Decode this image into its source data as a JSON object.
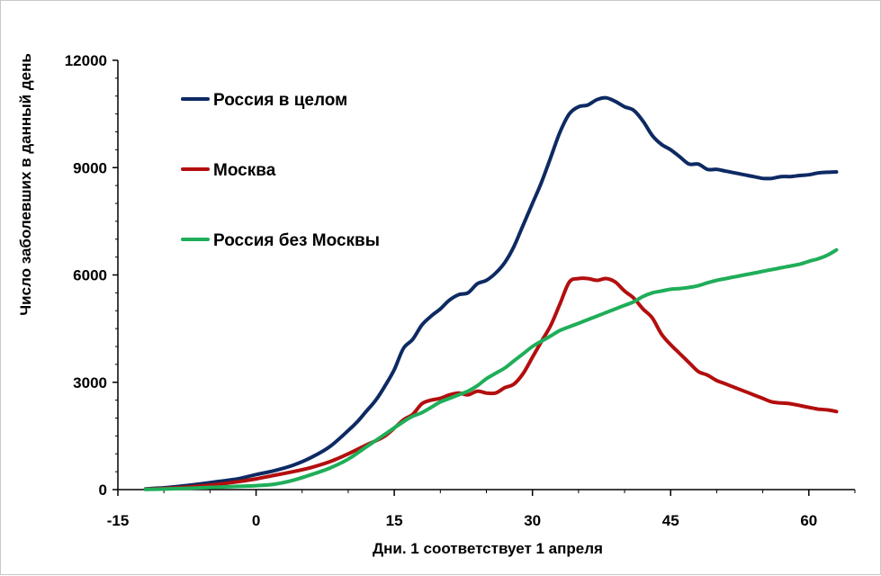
{
  "chart_data": {
    "type": "line",
    "title": "",
    "xlabel": "Дни. 1 соответствует 1 апреля",
    "ylabel": "Число заболевших в данный день",
    "xlim": [
      -15,
      65
    ],
    "ylim": [
      0,
      12000
    ],
    "x_ticks": [
      "-15",
      "0",
      "15",
      "30",
      "45",
      "60"
    ],
    "y_ticks": [
      "0",
      "3000",
      "6000",
      "9000",
      "12000"
    ],
    "grid": false,
    "legend_position": "top-left",
    "series": [
      {
        "name": "Россия в целом",
        "color": "#0d2a63",
        "x": [
          -12,
          -10,
          -8,
          -6,
          -4,
          -2,
          0,
          2,
          4,
          6,
          8,
          10,
          11,
          12,
          13,
          14,
          15,
          16,
          17,
          18,
          19,
          20,
          21,
          22,
          23,
          24,
          25,
          26,
          27,
          28,
          29,
          30,
          31,
          32,
          33,
          34,
          35,
          36,
          37,
          38,
          39,
          40,
          41,
          42,
          43,
          44,
          45,
          46,
          47,
          48,
          49,
          50,
          51,
          52,
          53,
          54,
          55,
          56,
          57,
          58,
          59,
          60,
          61,
          62,
          63
        ],
        "y": [
          20,
          50,
          100,
          160,
          230,
          300,
          420,
          530,
          680,
          900,
          1200,
          1650,
          1900,
          2200,
          2500,
          2900,
          3350,
          3950,
          4200,
          4600,
          4850,
          5050,
          5300,
          5450,
          5500,
          5750,
          5850,
          6050,
          6350,
          6800,
          7400,
          8000,
          8600,
          9300,
          10000,
          10500,
          10700,
          10750,
          10900,
          10950,
          10850,
          10700,
          10600,
          10300,
          9900,
          9650,
          9500,
          9300,
          9100,
          9100,
          8950,
          8950,
          8900,
          8850,
          8800,
          8750,
          8700,
          8700,
          8750,
          8750,
          8780,
          8800,
          8850,
          8870,
          8880
        ]
      },
      {
        "name": "Москва",
        "color": "#b30e0e",
        "x": [
          -12,
          -10,
          -8,
          -6,
          -4,
          -2,
          0,
          2,
          4,
          6,
          8,
          10,
          12,
          14,
          16,
          17,
          18,
          19,
          20,
          21,
          22,
          23,
          24,
          25,
          26,
          27,
          28,
          29,
          30,
          31,
          32,
          33,
          34,
          35,
          36,
          37,
          38,
          39,
          40,
          41,
          42,
          43,
          44,
          45,
          46,
          47,
          48,
          49,
          50,
          51,
          52,
          53,
          54,
          55,
          56,
          57,
          58,
          59,
          60,
          61,
          62,
          63
        ],
        "y": [
          10,
          30,
          60,
          100,
          150,
          220,
          300,
          400,
          500,
          620,
          780,
          1000,
          1250,
          1500,
          1950,
          2100,
          2400,
          2500,
          2550,
          2650,
          2700,
          2650,
          2750,
          2700,
          2700,
          2850,
          2950,
          3250,
          3700,
          4150,
          4600,
          5200,
          5800,
          5900,
          5900,
          5850,
          5900,
          5800,
          5550,
          5350,
          5050,
          4800,
          4350,
          4050,
          3800,
          3550,
          3300,
          3200,
          3050,
          2950,
          2850,
          2750,
          2650,
          2550,
          2450,
          2420,
          2400,
          2350,
          2300,
          2250,
          2230,
          2180
        ]
      },
      {
        "name": "Россия без Москвы",
        "color": "#1fae59",
        "x": [
          -12,
          -10,
          -8,
          -6,
          -4,
          -2,
          0,
          2,
          4,
          6,
          8,
          10,
          12,
          14,
          16,
          17,
          18,
          19,
          20,
          21,
          22,
          23,
          24,
          25,
          26,
          27,
          28,
          29,
          30,
          31,
          32,
          33,
          34,
          35,
          36,
          37,
          38,
          39,
          40,
          41,
          42,
          43,
          44,
          45,
          46,
          47,
          48,
          49,
          50,
          51,
          52,
          53,
          54,
          55,
          56,
          57,
          58,
          59,
          60,
          61,
          62,
          63
        ],
        "y": [
          5,
          15,
          30,
          50,
          70,
          90,
          110,
          150,
          260,
          420,
          600,
          850,
          1200,
          1550,
          1900,
          2050,
          2150,
          2300,
          2450,
          2550,
          2650,
          2750,
          2900,
          3100,
          3250,
          3400,
          3600,
          3800,
          4000,
          4150,
          4300,
          4450,
          4550,
          4650,
          4750,
          4850,
          4950,
          5050,
          5150,
          5250,
          5400,
          5500,
          5550,
          5600,
          5620,
          5650,
          5700,
          5780,
          5850,
          5900,
          5950,
          6000,
          6050,
          6100,
          6150,
          6200,
          6250,
          6300,
          6380,
          6450,
          6550,
          6700
        ]
      }
    ]
  }
}
